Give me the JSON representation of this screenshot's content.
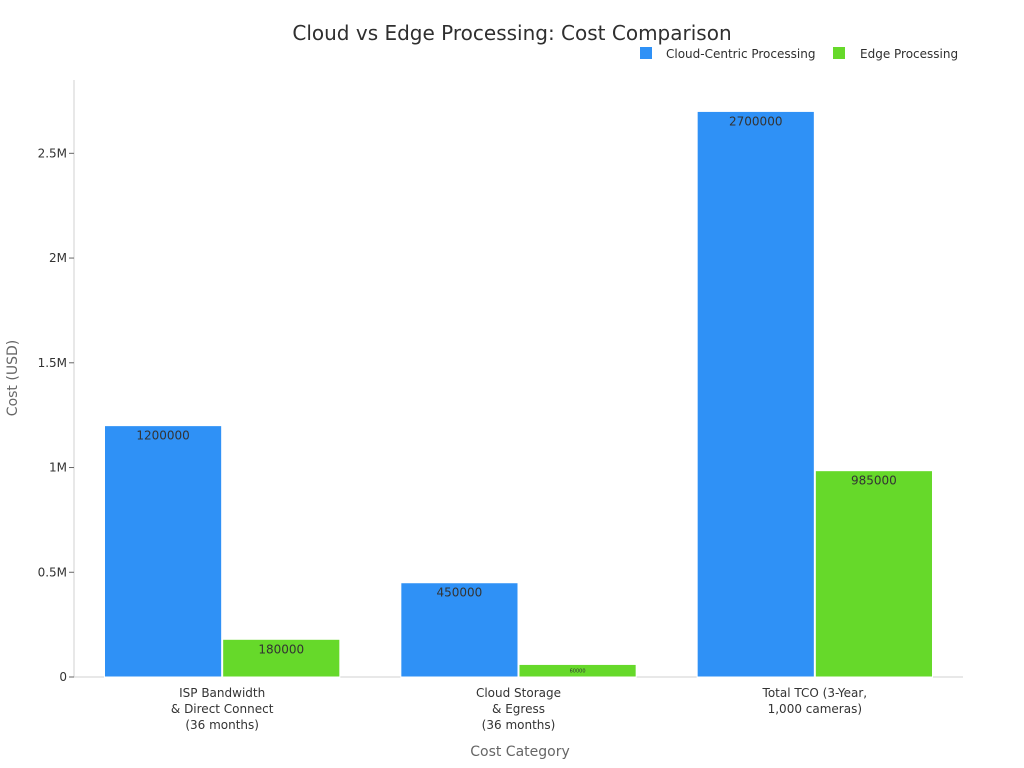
{
  "chart_data": {
    "type": "bar",
    "title": "Cloud vs Edge Processing: Cost Comparison",
    "xlabel": "Cost Category",
    "ylabel": "Cost (USD)",
    "ylim": [
      0,
      2850000
    ],
    "yticks": [
      0,
      500000,
      1000000,
      1500000,
      2000000,
      2500000
    ],
    "ytick_labels": [
      "0",
      "0.5M",
      "1M",
      "1.5M",
      "2M",
      "2.5M"
    ],
    "categories": [
      [
        "ISP Bandwidth",
        "& Direct Connect",
        "(36 months)"
      ],
      [
        "Cloud Storage",
        "& Egress",
        "(36 months)"
      ],
      [
        "Total TCO (3-Year,",
        "1,000 cameras)"
      ]
    ],
    "series": [
      {
        "name": "Cloud-Centric Processing",
        "color": "#2f91f6",
        "values": [
          1200000,
          450000,
          2700000
        ],
        "labels": [
          "1200000",
          "450000",
          "2700000"
        ]
      },
      {
        "name": "Edge Processing",
        "color": "#66d92a",
        "values": [
          180000,
          60000,
          985000
        ],
        "labels": [
          "180000",
          "60000",
          "985000"
        ]
      }
    ],
    "legend": "top-right",
    "grid": false
  }
}
